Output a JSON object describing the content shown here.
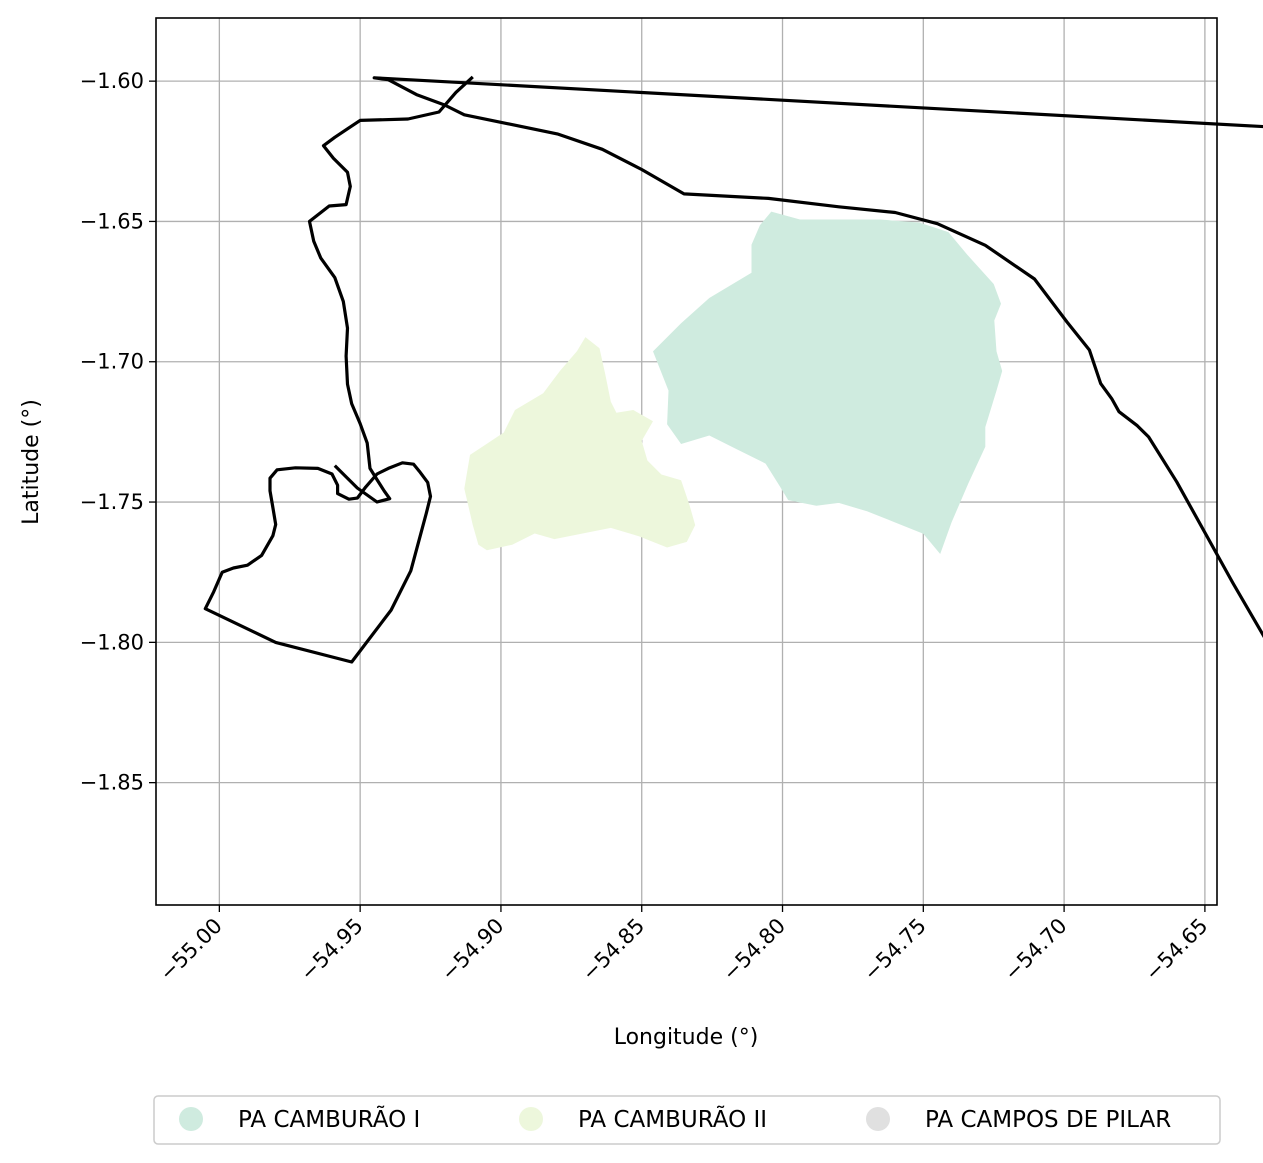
{
  "chart_data": {
    "type": "map",
    "xlabel": "Longitude (°)",
    "ylabel": "Latitude (°)",
    "xlim": [
      -55.0225,
      -54.6457
    ],
    "ylim": [
      -1.8936,
      -1.5775
    ],
    "x_ticks": [
      -55.0,
      -54.95,
      -54.9,
      -54.85,
      -54.8,
      -54.75,
      -54.7,
      -54.65
    ],
    "x_tick_labels": [
      "−55.00",
      "−54.95",
      "−54.90",
      "−54.85",
      "−54.80",
      "−54.75",
      "−54.70",
      "−54.65"
    ],
    "y_ticks": [
      -1.6,
      -1.65,
      -1.7,
      -1.75,
      -1.8,
      -1.85
    ],
    "y_tick_labels": [
      "−1.60",
      "−1.65",
      "−1.70",
      "−1.75",
      "−1.80",
      "−1.85"
    ],
    "grid": true,
    "legend_position": "bottom",
    "legend": [
      {
        "name": "PA CAMBURÃO I",
        "color": "#cfebdf"
      },
      {
        "name": "PA CAMBURÃO II",
        "color": "#edf7dc"
      },
      {
        "name": "PA CAMPOS DE PILAR",
        "color": "#e0e0e0"
      }
    ],
    "filled_areas": [
      {
        "name": "PA CAMBURÃO I",
        "color": "#cfebdf",
        "coords": [
          [
            -54.804,
            -1.6465
          ],
          [
            -54.7938,
            -1.6493
          ],
          [
            -54.7653,
            -1.6493
          ],
          [
            -54.7513,
            -1.6504
          ],
          [
            -54.7411,
            -1.6538
          ],
          [
            -54.7344,
            -1.6618
          ],
          [
            -54.725,
            -1.6723
          ],
          [
            -54.7224,
            -1.6793
          ],
          [
            -54.7248,
            -1.6853
          ],
          [
            -54.724,
            -1.6963
          ],
          [
            -54.722,
            -1.7033
          ],
          [
            -54.724,
            -1.7103
          ],
          [
            -54.728,
            -1.7233
          ],
          [
            -54.728,
            -1.7303
          ],
          [
            -54.734,
            -1.7433
          ],
          [
            -54.74,
            -1.7573
          ],
          [
            -54.744,
            -1.7685
          ],
          [
            -54.75,
            -1.7613
          ],
          [
            -54.76,
            -1.7573
          ],
          [
            -54.77,
            -1.7533
          ],
          [
            -54.78,
            -1.7503
          ],
          [
            -54.788,
            -1.7513
          ],
          [
            -54.798,
            -1.7493
          ],
          [
            -54.801,
            -1.7443
          ],
          [
            -54.806,
            -1.7363
          ],
          [
            -54.816,
            -1.7313
          ],
          [
            -54.826,
            -1.7263
          ],
          [
            -54.836,
            -1.7293
          ],
          [
            -54.841,
            -1.7223
          ],
          [
            -54.8405,
            -1.7103
          ],
          [
            -54.846,
            -1.6963
          ],
          [
            -54.836,
            -1.6863
          ],
          [
            -54.826,
            -1.6773
          ],
          [
            -54.811,
            -1.6683
          ],
          [
            -54.811,
            -1.6583
          ],
          [
            -54.808,
            -1.6513
          ],
          [
            -54.804,
            -1.6465
          ]
        ]
      },
      {
        "name": "PA CAMBURÃO II",
        "color": "#edf7dc",
        "coords": [
          [
            -54.87,
            -1.6912
          ],
          [
            -54.865,
            -1.6952
          ],
          [
            -54.863,
            -1.7042
          ],
          [
            -54.861,
            -1.7142
          ],
          [
            -54.859,
            -1.7182
          ],
          [
            -54.853,
            -1.7172
          ],
          [
            -54.846,
            -1.7212
          ],
          [
            -54.85,
            -1.7282
          ],
          [
            -54.848,
            -1.7352
          ],
          [
            -54.843,
            -1.7402
          ],
          [
            -54.836,
            -1.7422
          ],
          [
            -54.833,
            -1.7512
          ],
          [
            -54.831,
            -1.7582
          ],
          [
            -54.834,
            -1.7642
          ],
          [
            -54.841,
            -1.7662
          ],
          [
            -54.851,
            -1.7622
          ],
          [
            -54.861,
            -1.7592
          ],
          [
            -54.871,
            -1.7612
          ],
          [
            -54.881,
            -1.7632
          ],
          [
            -54.888,
            -1.7612
          ],
          [
            -54.896,
            -1.7652
          ],
          [
            -54.905,
            -1.7672
          ],
          [
            -54.908,
            -1.7652
          ],
          [
            -54.91,
            -1.7582
          ],
          [
            -54.913,
            -1.7452
          ],
          [
            -54.911,
            -1.7332
          ],
          [
            -54.905,
            -1.7292
          ],
          [
            -54.899,
            -1.7252
          ],
          [
            -54.895,
            -1.7172
          ],
          [
            -54.885,
            -1.7112
          ],
          [
            -54.879,
            -1.7032
          ],
          [
            -54.873,
            -1.6962
          ],
          [
            -54.87,
            -1.6912
          ]
        ]
      }
    ],
    "outlines": [
      {
        "name": "outer boundary",
        "coords": [
          [
            -54.945,
            -1.5988
          ],
          [
            -54.94,
            -1.5995
          ],
          [
            -54.93,
            -1.6048
          ],
          [
            -54.92,
            -1.6085
          ],
          [
            -54.913,
            -1.612
          ],
          [
            -54.895,
            -1.6157
          ],
          [
            -54.88,
            -1.6188
          ],
          [
            -54.864,
            -1.6243
          ],
          [
            -54.85,
            -1.6315
          ],
          [
            -54.835,
            -1.6402
          ],
          [
            -54.805,
            -1.6418
          ],
          [
            -54.78,
            -1.6448
          ],
          [
            -54.76,
            -1.6468
          ],
          [
            -54.745,
            -1.6508
          ],
          [
            -54.728,
            -1.6585
          ],
          [
            -54.7105,
            -1.6705
          ],
          [
            -54.699,
            -1.6858
          ],
          [
            -54.691,
            -1.6958
          ],
          [
            -54.687,
            -1.7078
          ],
          [
            -54.683,
            -1.7133
          ],
          [
            -54.6805,
            -1.7178
          ],
          [
            -54.674,
            -1.7228
          ],
          [
            -54.67,
            -1.7268
          ],
          [
            -54.66,
            -1.7428
          ],
          [
            -54.64,
            -1.779
          ],
          [
            -54.622,
            -1.81
          ],
          [
            -54.604,
            -1.839
          ],
          [
            -54.592,
            -1.8586
          ],
          [
            -54.58,
            -1.8606
          ],
          [
            -54.564,
            -1.8692
          ],
          [
            -54.556,
            -1.8728
          ],
          [
            -54.556,
            -1.8738
          ],
          [
            -54.554,
            -1.8822
          ],
          [
            -54.552,
            -1.8825
          ],
          [
            -54.548,
            -1.878
          ],
          [
            -54.546,
            -1.8662
          ],
          [
            -54.543,
            -1.8478
          ],
          [
            -54.5395,
            -1.8368
          ],
          [
            -54.5335,
            -1.8276
          ],
          [
            -54.531,
            -1.8218
          ],
          [
            -54.529,
            -1.8165
          ],
          [
            -54.528,
            -1.8038
          ],
          [
            -54.5335,
            -1.7928
          ],
          [
            -54.538,
            -1.7848
          ],
          [
            -54.539,
            -1.7768
          ],
          [
            -54.539,
            -1.7656
          ],
          [
            -54.532,
            -1.7526
          ],
          [
            -54.519,
            -1.7448
          ],
          [
            -54.5115,
            -1.7408
          ],
          [
            -54.505,
            -1.7346
          ],
          [
            -54.501,
            -1.7266
          ],
          [
            -54.499,
            -1.7171
          ],
          [
            -54.495,
            -1.7101
          ],
          [
            -54.488,
            -1.7011
          ],
          [
            -54.486,
            -1.6945
          ],
          [
            -54.483,
            -1.688
          ],
          [
            -54.482,
            -1.677
          ],
          [
            -54.4798,
            -1.6688
          ],
          [
            -54.476,
            -1.6647
          ],
          [
            -54.472,
            -1.6604
          ],
          [
            -54.462,
            -1.657
          ],
          [
            -54.4465,
            -1.64
          ],
          [
            -54.437,
            -1.6268
          ]
        ]
      },
      {
        "name": "west parcel",
        "coords": [
          [
            -55.005,
            -1.788
          ],
          [
            -55.002,
            -1.782
          ],
          [
            -54.999,
            -1.775
          ],
          [
            -54.995,
            -1.7735
          ],
          [
            -54.99,
            -1.7725
          ],
          [
            -54.985,
            -1.769
          ],
          [
            -54.981,
            -1.762
          ],
          [
            -54.98,
            -1.758
          ],
          [
            -54.981,
            -1.752
          ],
          [
            -54.982,
            -1.746
          ],
          [
            -54.982,
            -1.7415
          ],
          [
            -54.9795,
            -1.7385
          ],
          [
            -54.973,
            -1.7378
          ],
          [
            -54.965,
            -1.738
          ],
          [
            -54.96,
            -1.74
          ],
          [
            -54.958,
            -1.744
          ],
          [
            -54.958,
            -1.747
          ],
          [
            -54.954,
            -1.749
          ],
          [
            -54.951,
            -1.7486
          ],
          [
            -54.948,
            -1.7446
          ],
          [
            -54.944,
            -1.74
          ],
          [
            -54.94,
            -1.738
          ],
          [
            -54.935,
            -1.736
          ],
          [
            -54.931,
            -1.7365
          ],
          [
            -54.929,
            -1.739
          ],
          [
            -54.926,
            -1.743
          ],
          [
            -54.925,
            -1.748
          ],
          [
            -54.9265,
            -1.754
          ],
          [
            -54.932,
            -1.7745
          ],
          [
            -54.939,
            -1.7885
          ],
          [
            -54.953,
            -1.807
          ],
          [
            -54.98,
            -1.8
          ],
          [
            -55.005,
            -1.788
          ]
        ]
      }
    ],
    "polylines": [
      {
        "name": "northwest boundary",
        "coords": [
          [
            -54.91,
            -1.5985
          ],
          [
            -54.916,
            -1.604
          ],
          [
            -54.922,
            -1.611
          ],
          [
            -54.933,
            -1.6135
          ],
          [
            -54.95,
            -1.614
          ],
          [
            -54.959,
            -1.62
          ],
          [
            -54.963,
            -1.623
          ],
          [
            -54.9595,
            -1.6275
          ],
          [
            -54.9545,
            -1.6325
          ],
          [
            -54.9535,
            -1.6375
          ],
          [
            -54.955,
            -1.644
          ],
          [
            -54.961,
            -1.6445
          ],
          [
            -54.968,
            -1.65
          ],
          [
            -54.9665,
            -1.657
          ],
          [
            -54.964,
            -1.663
          ],
          [
            -54.959,
            -1.67
          ],
          [
            -54.956,
            -1.6785
          ],
          [
            -54.9545,
            -1.688
          ],
          [
            -54.955,
            -1.698
          ],
          [
            -54.9545,
            -1.708
          ],
          [
            -54.953,
            -1.715
          ],
          [
            -54.95,
            -1.722
          ],
          [
            -54.9475,
            -1.729
          ],
          [
            -54.9465,
            -1.738
          ],
          [
            -54.944,
            -1.742
          ],
          [
            -54.9415,
            -1.746
          ],
          [
            -54.9395,
            -1.7488
          ],
          [
            -54.944,
            -1.75
          ],
          [
            -54.951,
            -1.745
          ],
          [
            -54.959,
            -1.737
          ]
        ]
      }
    ]
  }
}
